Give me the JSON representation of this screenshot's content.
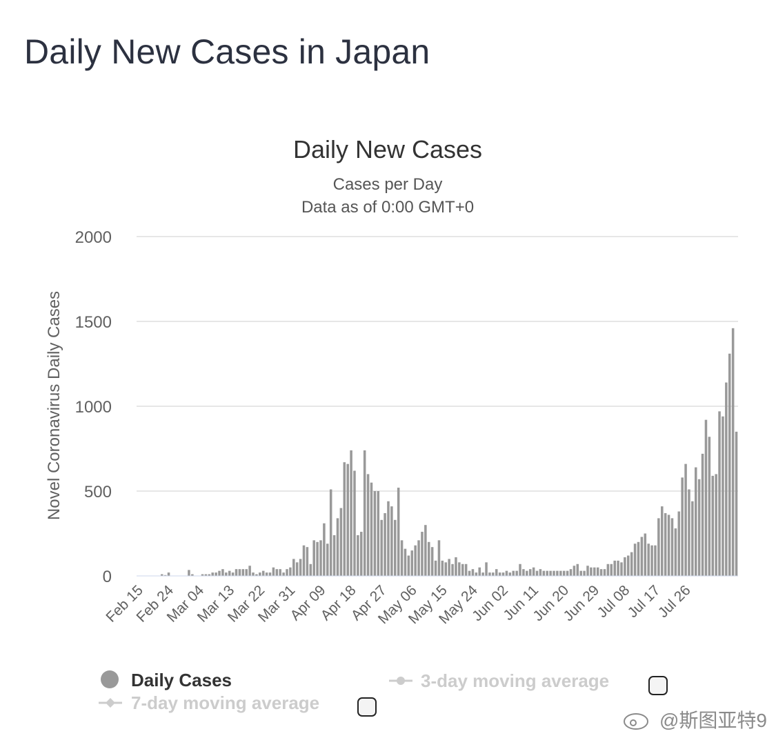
{
  "page": {
    "title": "Daily New Cases in Japan"
  },
  "watermark": "@斯图亚特9",
  "chart_data": {
    "type": "bar",
    "title": "Daily New Cases",
    "subtitle": "Cases per Day",
    "subtitle2": "Data as of 0:00 GMT+0",
    "xlabel": "",
    "ylabel": "Novel Coronavirus Daily Cases",
    "ylim": [
      0,
      2000
    ],
    "yticks": [
      0,
      500,
      1000,
      1500,
      2000
    ],
    "grid": true,
    "bar_color": "#999999",
    "x_tick_labels": [
      "Feb 15",
      "Feb 24",
      "Mar 04",
      "Mar 13",
      "Mar 22",
      "Mar 31",
      "Apr 09",
      "Apr 18",
      "Apr 27",
      "May 06",
      "May 15",
      "May 24",
      "Jun 02",
      "Jun 11",
      "Jun 20",
      "Jun 29",
      "Jul 08",
      "Jul 17",
      "Jul 26"
    ],
    "x_tick_step": 9,
    "series": [
      {
        "name": "Daily Cases",
        "values": [
          0,
          0,
          0,
          0,
          0,
          0,
          0,
          10,
          5,
          20,
          0,
          0,
          0,
          0,
          0,
          35,
          10,
          0,
          0,
          10,
          10,
          10,
          20,
          20,
          30,
          40,
          20,
          30,
          20,
          40,
          40,
          40,
          40,
          60,
          20,
          10,
          20,
          30,
          20,
          20,
          50,
          40,
          40,
          20,
          40,
          50,
          100,
          80,
          100,
          180,
          170,
          70,
          210,
          200,
          210,
          310,
          190,
          510,
          240,
          340,
          400,
          670,
          660,
          740,
          620,
          240,
          260,
          740,
          600,
          550,
          500,
          500,
          330,
          370,
          440,
          410,
          330,
          520,
          210,
          160,
          120,
          150,
          180,
          210,
          260,
          300,
          200,
          170,
          90,
          210,
          90,
          80,
          100,
          70,
          110,
          80,
          70,
          70,
          30,
          40,
          20,
          50,
          20,
          80,
          20,
          20,
          40,
          20,
          20,
          30,
          20,
          30,
          30,
          70,
          40,
          30,
          40,
          50,
          30,
          40,
          30,
          30,
          30,
          30,
          30,
          30,
          30,
          30,
          40,
          60,
          70,
          30,
          30,
          60,
          50,
          50,
          50,
          40,
          40,
          70,
          70,
          90,
          90,
          80,
          110,
          120,
          140,
          190,
          200,
          230,
          250,
          190,
          180,
          180,
          340,
          410,
          370,
          360,
          340,
          280,
          380,
          580,
          660,
          510,
          440,
          640,
          570,
          720,
          920,
          820,
          590,
          600,
          970,
          940,
          1140,
          1310,
          1460,
          850
        ]
      },
      {
        "name": "3-day moving average",
        "values": []
      },
      {
        "name": "7-day moving average",
        "values": []
      }
    ],
    "legend": {
      "placement": "bottom",
      "active_color": "#333333",
      "inactive_color": "#cccccc",
      "marker_color": "#999999"
    }
  }
}
